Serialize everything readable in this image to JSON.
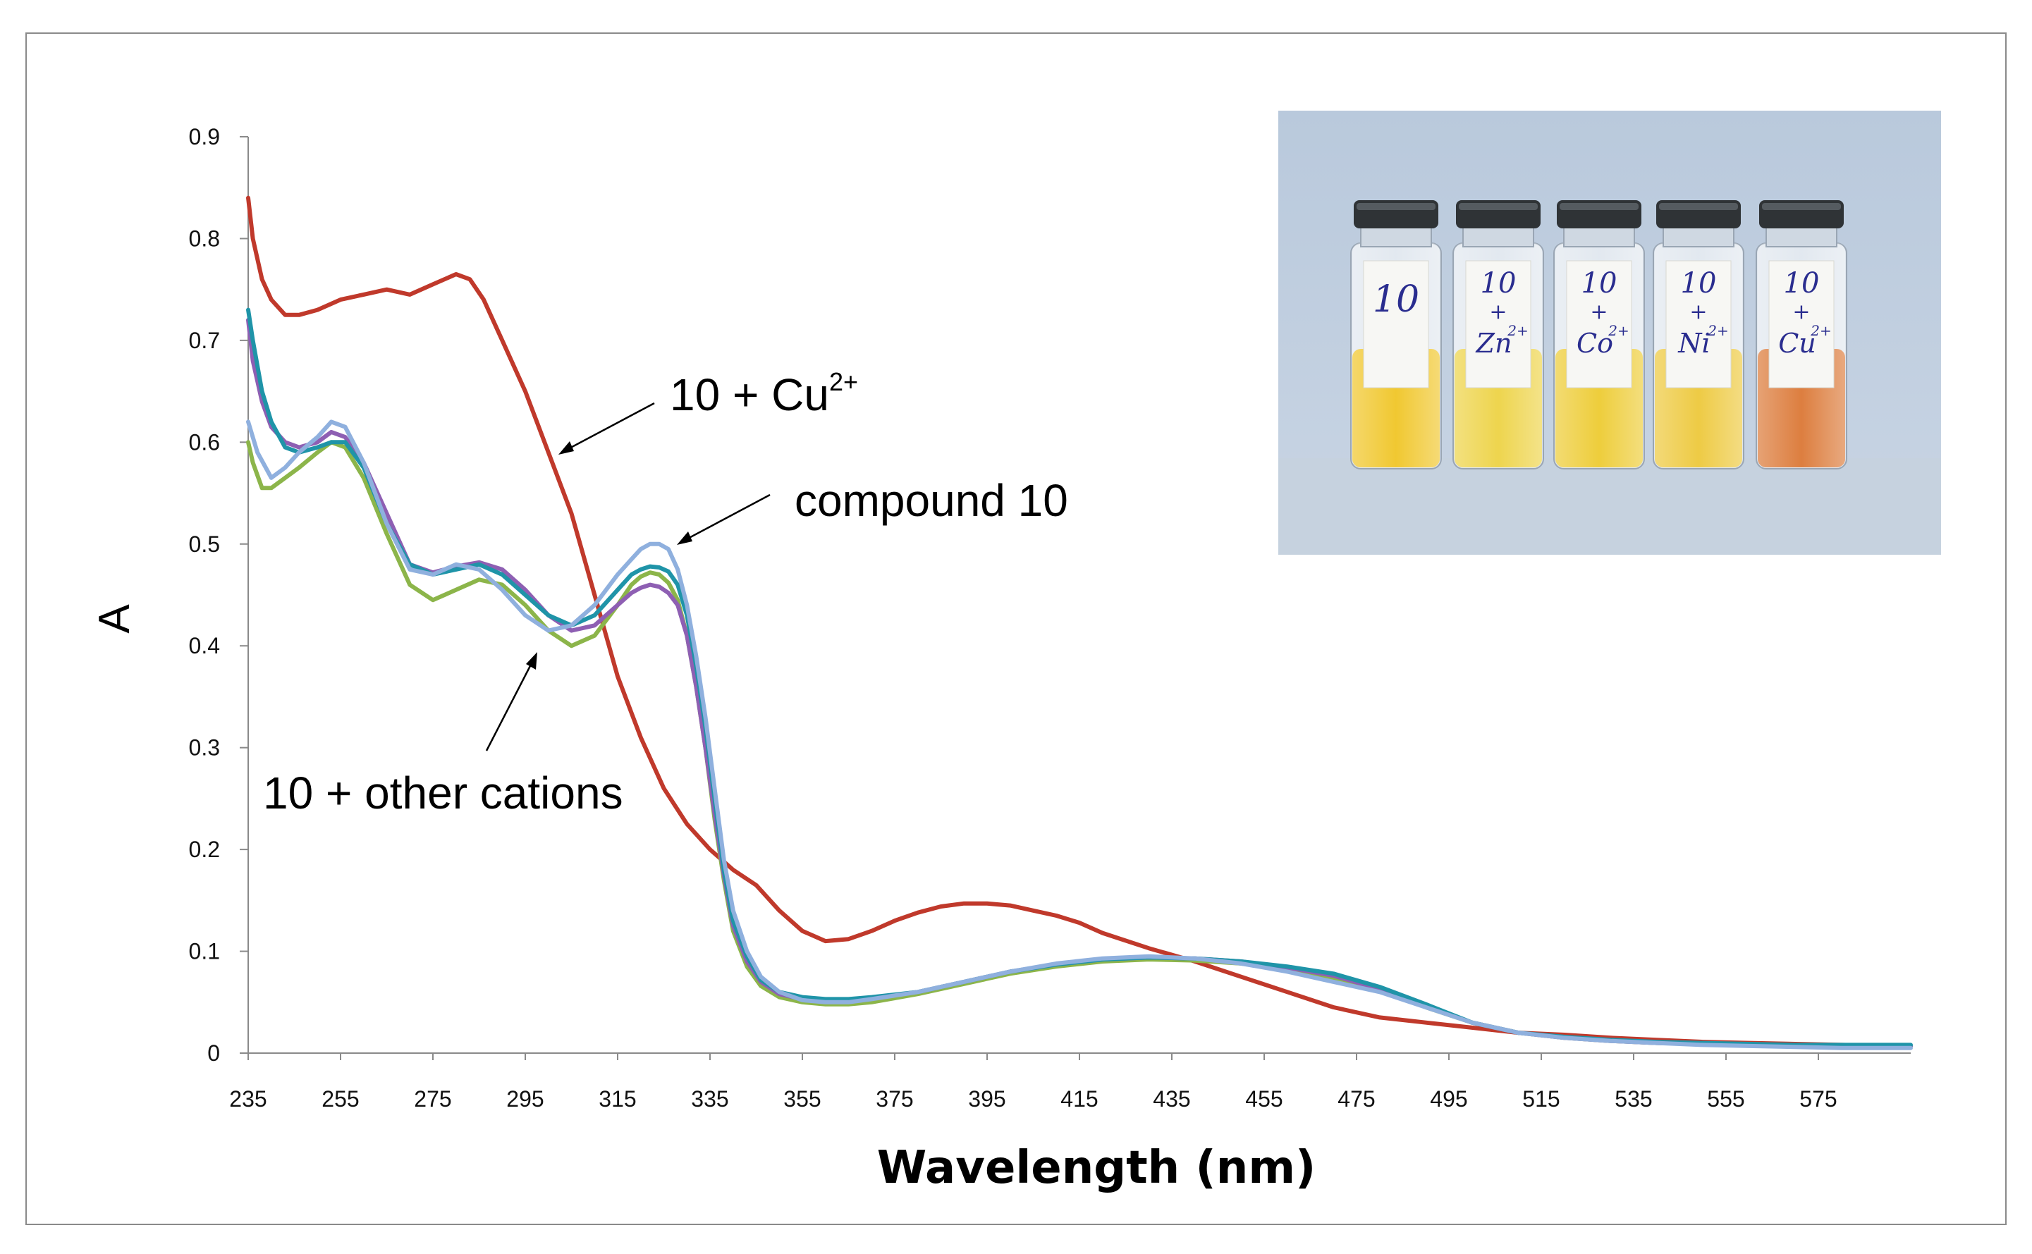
{
  "chart_data": {
    "type": "line",
    "title": "",
    "xlabel": "Wavelength (nm)",
    "ylabel": "A",
    "xlim": [
      235,
      595
    ],
    "ylim": [
      0,
      0.9
    ],
    "x_ticks": [
      "235",
      "255",
      "275",
      "295",
      "315",
      "335",
      "355",
      "375",
      "395",
      "415",
      "435",
      "455",
      "475",
      "495",
      "515",
      "535",
      "555",
      "575"
    ],
    "y_ticks": [
      "0",
      "0.1",
      "0.2",
      "0.3",
      "0.4",
      "0.5",
      "0.6",
      "0.7",
      "0.8",
      "0.9"
    ],
    "grid": false,
    "series": [
      {
        "name": "10 + Cu2+",
        "color": "#c0392b",
        "x": [
          235,
          236,
          238,
          240,
          243,
          246,
          250,
          255,
          260,
          265,
          270,
          275,
          280,
          283,
          286,
          290,
          295,
          300,
          305,
          310,
          315,
          320,
          325,
          330,
          335,
          340,
          345,
          350,
          355,
          360,
          365,
          370,
          375,
          380,
          385,
          390,
          395,
          400,
          405,
          410,
          415,
          420,
          430,
          440,
          450,
          460,
          470,
          480,
          490,
          500,
          510,
          520,
          530,
          540,
          550,
          560,
          570,
          580,
          590,
          595
        ],
        "y": [
          0.84,
          0.8,
          0.76,
          0.74,
          0.725,
          0.725,
          0.73,
          0.74,
          0.745,
          0.75,
          0.745,
          0.755,
          0.765,
          0.76,
          0.74,
          0.7,
          0.65,
          0.59,
          0.53,
          0.45,
          0.37,
          0.31,
          0.26,
          0.225,
          0.2,
          0.18,
          0.165,
          0.14,
          0.12,
          0.11,
          0.112,
          0.12,
          0.13,
          0.138,
          0.144,
          0.147,
          0.147,
          0.145,
          0.14,
          0.135,
          0.128,
          0.118,
          0.103,
          0.09,
          0.075,
          0.06,
          0.045,
          0.035,
          0.03,
          0.025,
          0.02,
          0.018,
          0.015,
          0.013,
          0.011,
          0.01,
          0.009,
          0.008,
          0.007,
          0.007
        ]
      },
      {
        "name": "compound 10",
        "color": "#8fb0de",
        "x": [
          235,
          237,
          240,
          243,
          246,
          250,
          253,
          256,
          260,
          265,
          270,
          275,
          280,
          285,
          290,
          295,
          300,
          305,
          310,
          315,
          318,
          320,
          322,
          324,
          326,
          328,
          330,
          332,
          334,
          336,
          338,
          340,
          343,
          346,
          350,
          355,
          360,
          365,
          370,
          380,
          390,
          400,
          410,
          420,
          430,
          440,
          450,
          460,
          470,
          480,
          490,
          500,
          510,
          520,
          530,
          540,
          550,
          560,
          570,
          580,
          590,
          595
        ],
        "y": [
          0.62,
          0.59,
          0.565,
          0.575,
          0.59,
          0.605,
          0.62,
          0.615,
          0.58,
          0.52,
          0.475,
          0.47,
          0.48,
          0.475,
          0.455,
          0.43,
          0.415,
          0.42,
          0.44,
          0.47,
          0.485,
          0.495,
          0.5,
          0.5,
          0.495,
          0.475,
          0.44,
          0.39,
          0.33,
          0.26,
          0.19,
          0.14,
          0.1,
          0.075,
          0.06,
          0.052,
          0.05,
          0.05,
          0.053,
          0.06,
          0.07,
          0.08,
          0.088,
          0.093,
          0.095,
          0.093,
          0.088,
          0.08,
          0.07,
          0.06,
          0.045,
          0.03,
          0.02,
          0.015,
          0.012,
          0.01,
          0.008,
          0.007,
          0.006,
          0.005,
          0.005,
          0.005
        ]
      },
      {
        "name": "10 + Zn2+",
        "color": "#1f94a8",
        "x": [
          235,
          236,
          238,
          240,
          243,
          246,
          250,
          253,
          256,
          260,
          265,
          270,
          275,
          280,
          285,
          290,
          295,
          300,
          305,
          310,
          315,
          318,
          320,
          322,
          324,
          326,
          328,
          330,
          332,
          334,
          336,
          338,
          340,
          343,
          346,
          350,
          355,
          360,
          365,
          370,
          380,
          390,
          400,
          410,
          420,
          430,
          440,
          450,
          460,
          470,
          480,
          490,
          500,
          510,
          520,
          530,
          540,
          550,
          560,
          570,
          580,
          590,
          595
        ],
        "y": [
          0.73,
          0.7,
          0.65,
          0.62,
          0.595,
          0.59,
          0.595,
          0.6,
          0.6,
          0.575,
          0.52,
          0.48,
          0.47,
          0.475,
          0.48,
          0.47,
          0.45,
          0.43,
          0.42,
          0.43,
          0.455,
          0.47,
          0.475,
          0.478,
          0.477,
          0.473,
          0.46,
          0.43,
          0.38,
          0.32,
          0.25,
          0.18,
          0.13,
          0.095,
          0.072,
          0.06,
          0.055,
          0.053,
          0.053,
          0.055,
          0.06,
          0.07,
          0.08,
          0.087,
          0.092,
          0.094,
          0.093,
          0.09,
          0.085,
          0.078,
          0.065,
          0.048,
          0.03,
          0.02,
          0.016,
          0.013,
          0.011,
          0.01,
          0.009,
          0.008,
          0.008,
          0.008,
          0.008
        ]
      },
      {
        "name": "10 + Co2+",
        "color": "#8cb54a",
        "x": [
          235,
          236,
          238,
          240,
          243,
          246,
          250,
          253,
          256,
          260,
          265,
          270,
          275,
          280,
          285,
          290,
          295,
          300,
          305,
          310,
          315,
          318,
          320,
          322,
          324,
          326,
          328,
          330,
          332,
          334,
          336,
          338,
          340,
          343,
          346,
          350,
          355,
          360,
          365,
          370,
          380,
          390,
          400,
          410,
          420,
          430,
          440,
          450,
          460,
          470,
          480,
          490,
          500,
          510,
          520,
          530,
          540,
          550,
          560,
          570,
          580,
          590,
          595
        ],
        "y": [
          0.6,
          0.58,
          0.555,
          0.555,
          0.565,
          0.575,
          0.59,
          0.6,
          0.595,
          0.565,
          0.51,
          0.46,
          0.445,
          0.455,
          0.465,
          0.46,
          0.44,
          0.415,
          0.4,
          0.41,
          0.44,
          0.46,
          0.468,
          0.472,
          0.47,
          0.462,
          0.445,
          0.41,
          0.36,
          0.3,
          0.23,
          0.17,
          0.12,
          0.085,
          0.066,
          0.055,
          0.05,
          0.048,
          0.048,
          0.05,
          0.058,
          0.068,
          0.078,
          0.085,
          0.09,
          0.092,
          0.091,
          0.088,
          0.082,
          0.074,
          0.062,
          0.045,
          0.03,
          0.02,
          0.015,
          0.012,
          0.01,
          0.009,
          0.008,
          0.007,
          0.007,
          0.007,
          0.007
        ]
      },
      {
        "name": "10 + Ni2+",
        "color": "#8e5fb3",
        "x": [
          235,
          236,
          238,
          240,
          243,
          246,
          250,
          253,
          256,
          260,
          265,
          270,
          275,
          280,
          285,
          290,
          295,
          300,
          305,
          310,
          315,
          318,
          320,
          322,
          324,
          326,
          328,
          330,
          332,
          334,
          336,
          338,
          340,
          343,
          346,
          350,
          355,
          360,
          365,
          370,
          380,
          390,
          400,
          410,
          420,
          430,
          440,
          450,
          460,
          470,
          480,
          490,
          500,
          510,
          520,
          530,
          540,
          550,
          560,
          570,
          580,
          590,
          595
        ],
        "y": [
          0.72,
          0.68,
          0.64,
          0.615,
          0.6,
          0.595,
          0.6,
          0.61,
          0.605,
          0.58,
          0.53,
          0.48,
          0.472,
          0.478,
          0.482,
          0.475,
          0.455,
          0.43,
          0.415,
          0.42,
          0.44,
          0.452,
          0.457,
          0.46,
          0.458,
          0.452,
          0.44,
          0.41,
          0.36,
          0.3,
          0.235,
          0.175,
          0.125,
          0.09,
          0.07,
          0.058,
          0.053,
          0.052,
          0.052,
          0.054,
          0.06,
          0.07,
          0.08,
          0.087,
          0.092,
          0.094,
          0.093,
          0.09,
          0.084,
          0.076,
          0.063,
          0.046,
          0.03,
          0.02,
          0.015,
          0.012,
          0.01,
          0.009,
          0.008,
          0.007,
          0.007,
          0.007,
          0.007
        ]
      }
    ],
    "annotations": [
      {
        "text": "10 + Cu",
        "sup": "2+"
      },
      {
        "text": "compound 10"
      },
      {
        "text": "10 + other cations"
      }
    ]
  },
  "inset": {
    "vials": [
      {
        "lines": [
          "10"
        ],
        "sup": "",
        "liquid": "#efc21a"
      },
      {
        "lines": [
          "10",
          "+",
          "Zn"
        ],
        "sup": "2+",
        "liquid": "#ecd03a"
      },
      {
        "lines": [
          "10",
          "+",
          "Co"
        ],
        "sup": "2+",
        "liquid": "#ecc826"
      },
      {
        "lines": [
          "10",
          "+",
          "Ni"
        ],
        "sup": "2+",
        "liquid": "#ecc530"
      },
      {
        "lines": [
          "10",
          "+",
          "Cu"
        ],
        "sup": "2+",
        "liquid": "#d9702a"
      }
    ]
  }
}
